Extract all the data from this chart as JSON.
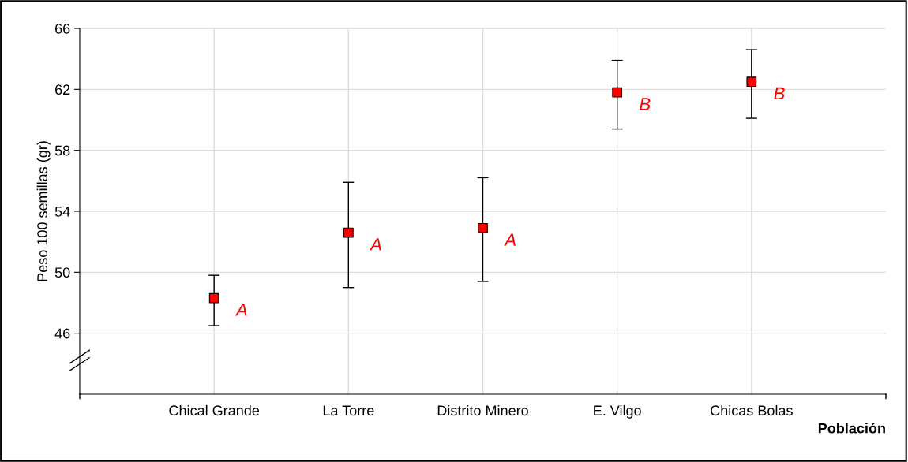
{
  "chart_data": {
    "type": "scatter",
    "ylabel": "Peso 100 semillas (gr)",
    "xlabel": "Población",
    "categories": [
      "Chical Grande",
      "La Torre",
      "Distrito Minero",
      "E. Vilgo",
      "Chicas Bolas"
    ],
    "series": [
      {
        "color": "#ff0000",
        "values": [
          48.3,
          52.6,
          52.9,
          61.8,
          62.5
        ],
        "errors": [
          [
            46.5,
            49.8
          ],
          [
            49.0,
            55.9
          ],
          [
            49.4,
            56.2
          ],
          [
            59.4,
            63.9
          ],
          [
            60.1,
            64.6
          ]
        ]
      }
    ],
    "ylim": [
      42,
      66
    ],
    "yticks": [
      46,
      50,
      54,
      58,
      62,
      66
    ],
    "grid": true,
    "marker": "square",
    "annotations": [
      {
        "text": "A",
        "x": "Chical Grande",
        "y": 48.3
      },
      {
        "text": "A",
        "x": "La Torre",
        "y": 52.6
      },
      {
        "text": "A",
        "x": "Distrito Minero",
        "y": 52.9
      },
      {
        "text": "B",
        "x": "E. Vilgo",
        "y": 61.8
      },
      {
        "text": "B",
        "x": "Chicas Bolas",
        "y": 62.5
      }
    ]
  }
}
